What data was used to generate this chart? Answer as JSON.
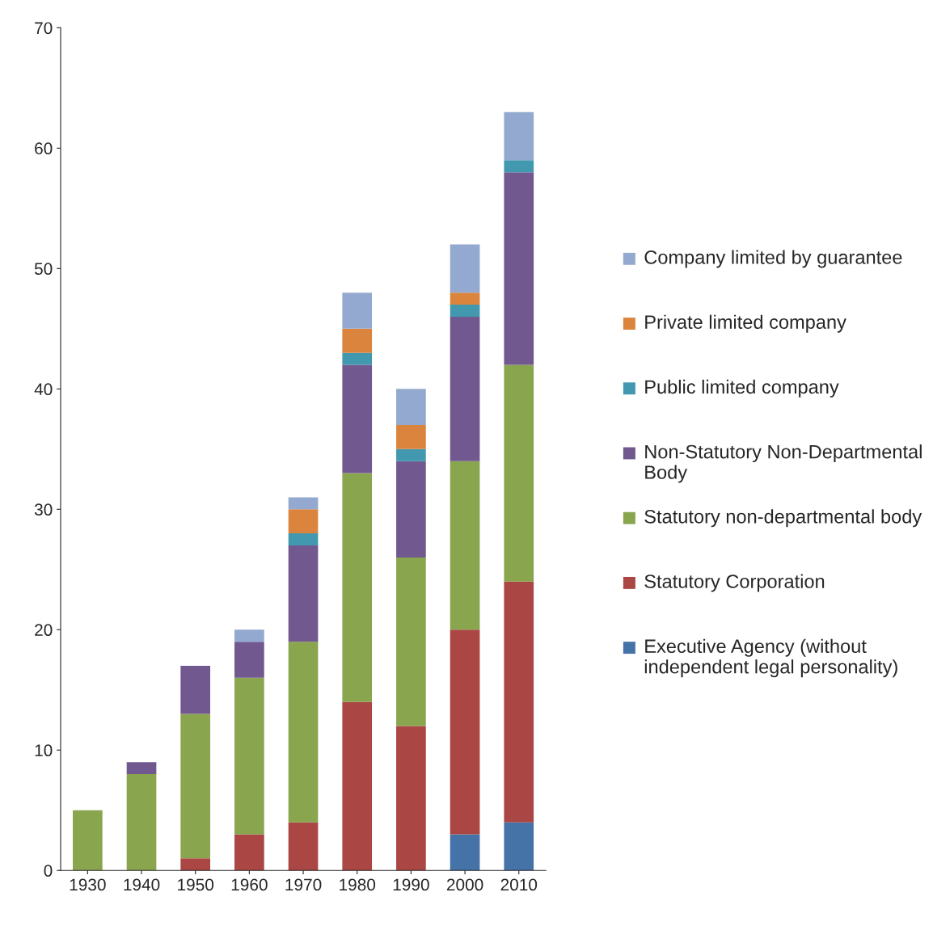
{
  "chart_data": {
    "type": "bar",
    "stacked": true,
    "categories": [
      "1930",
      "1940",
      "1950",
      "1960",
      "1970",
      "1980",
      "1990",
      "2000",
      "2010"
    ],
    "series": [
      {
        "name": "Executive Agency (without independent legal personality)",
        "color": "#4572a7",
        "values": [
          0,
          0,
          0,
          0,
          0,
          0,
          0,
          3,
          4
        ]
      },
      {
        "name": "Statutory Corporation",
        "color": "#aa4643",
        "values": [
          0,
          0,
          1,
          3,
          4,
          14,
          12,
          17,
          20
        ]
      },
      {
        "name": "Statutory non-departmental body",
        "color": "#89a54e",
        "values": [
          5,
          8,
          12,
          13,
          15,
          19,
          14,
          14,
          18
        ]
      },
      {
        "name": "Non-Statutory Non-Departmental Body",
        "color": "#71588f",
        "values": [
          0,
          1,
          4,
          3,
          8,
          9,
          8,
          12,
          16
        ]
      },
      {
        "name": "Public limited company",
        "color": "#4198af",
        "values": [
          0,
          0,
          0,
          0,
          1,
          1,
          1,
          1,
          1
        ]
      },
      {
        "name": "Private limited company",
        "color": "#db843d",
        "values": [
          0,
          0,
          0,
          0,
          2,
          2,
          2,
          1,
          0
        ]
      },
      {
        "name": "Company limited by guarantee",
        "color": "#93a9cf",
        "values": [
          0,
          0,
          0,
          1,
          1,
          3,
          3,
          4,
          4
        ]
      }
    ],
    "ylim": [
      0,
      70
    ],
    "yticks": [
      0,
      10,
      20,
      30,
      40,
      50,
      60,
      70
    ],
    "grid": false,
    "legend": "right"
  }
}
